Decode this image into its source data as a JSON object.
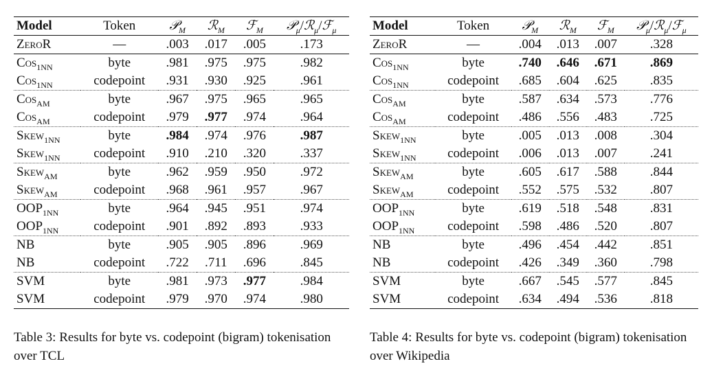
{
  "headers": {
    "model": "Model",
    "token": "Token",
    "p": "𝒫",
    "r": "ℛ",
    "f": "ℱ",
    "sub_m": "M",
    "sub_mu": "μ",
    "slash": "/"
  },
  "tables": [
    {
      "caption": "Table 3: Results for byte vs. codepoint (bigram) tokenisation over TCL",
      "groups": [
        [
          {
            "model": "ZeroR",
            "sub": "",
            "token": "—",
            "p": ".003",
            "r": ".017",
            "f": ".005",
            "mu": ".173",
            "bold": []
          }
        ],
        [
          {
            "model": "Cos",
            "sub": "1NN",
            "token": "byte",
            "p": ".981",
            "r": ".975",
            "f": ".975",
            "mu": ".982",
            "bold": []
          },
          {
            "model": "Cos",
            "sub": "1NN",
            "token": "codepoint",
            "p": ".931",
            "r": ".930",
            "f": ".925",
            "mu": ".961",
            "bold": []
          }
        ],
        [
          {
            "model": "Cos",
            "sub": "AM",
            "token": "byte",
            "p": ".967",
            "r": ".975",
            "f": ".965",
            "mu": ".965",
            "bold": []
          },
          {
            "model": "Cos",
            "sub": "AM",
            "token": "codepoint",
            "p": ".979",
            "r": ".977",
            "f": ".974",
            "mu": ".964",
            "bold": [
              "r"
            ]
          }
        ],
        [
          {
            "model": "Skew",
            "sub": "1NN",
            "token": "byte",
            "p": ".984",
            "r": ".974",
            "f": ".976",
            "mu": ".987",
            "bold": [
              "p",
              "mu"
            ]
          },
          {
            "model": "Skew",
            "sub": "1NN",
            "token": "codepoint",
            "p": ".910",
            "r": ".210",
            "f": ".320",
            "mu": ".337",
            "bold": []
          }
        ],
        [
          {
            "model": "Skew",
            "sub": "AM",
            "token": "byte",
            "p": ".962",
            "r": ".959",
            "f": ".950",
            "mu": ".972",
            "bold": []
          },
          {
            "model": "Skew",
            "sub": "AM",
            "token": "codepoint",
            "p": ".968",
            "r": ".961",
            "f": ".957",
            "mu": ".967",
            "bold": []
          }
        ],
        [
          {
            "model": "OOP",
            "sub": "1NN",
            "token": "byte",
            "p": ".964",
            "r": ".945",
            "f": ".951",
            "mu": ".974",
            "bold": []
          },
          {
            "model": "OOP",
            "sub": "1NN",
            "token": "codepoint",
            "p": ".901",
            "r": ".892",
            "f": ".893",
            "mu": ".933",
            "bold": []
          }
        ],
        [
          {
            "model": "NB",
            "sub": "",
            "token": "byte",
            "p": ".905",
            "r": ".905",
            "f": ".896",
            "mu": ".969",
            "bold": []
          },
          {
            "model": "NB",
            "sub": "",
            "token": "codepoint",
            "p": ".722",
            "r": ".711",
            "f": ".696",
            "mu": ".845",
            "bold": []
          }
        ],
        [
          {
            "model": "SVM",
            "sub": "",
            "token": "byte",
            "p": ".981",
            "r": ".973",
            "f": ".977",
            "mu": ".984",
            "bold": [
              "f"
            ]
          },
          {
            "model": "SVM",
            "sub": "",
            "token": "codepoint",
            "p": ".979",
            "r": ".970",
            "f": ".974",
            "mu": ".980",
            "bold": []
          }
        ]
      ]
    },
    {
      "caption": "Table 4: Results for byte vs. codepoint (bigram) tokenisation over Wikipedia",
      "groups": [
        [
          {
            "model": "ZeroR",
            "sub": "",
            "token": "—",
            "p": ".004",
            "r": ".013",
            "f": ".007",
            "mu": ".328",
            "bold": []
          }
        ],
        [
          {
            "model": "Cos",
            "sub": "1NN",
            "token": "byte",
            "p": ".740",
            "r": ".646",
            "f": ".671",
            "mu": ".869",
            "bold": [
              "p",
              "r",
              "f",
              "mu"
            ]
          },
          {
            "model": "Cos",
            "sub": "1NN",
            "token": "codepoint",
            "p": ".685",
            "r": ".604",
            "f": ".625",
            "mu": ".835",
            "bold": []
          }
        ],
        [
          {
            "model": "Cos",
            "sub": "AM",
            "token": "byte",
            "p": ".587",
            "r": ".634",
            "f": ".573",
            "mu": ".776",
            "bold": []
          },
          {
            "model": "Cos",
            "sub": "AM",
            "token": "codepoint",
            "p": ".486",
            "r": ".556",
            "f": ".483",
            "mu": ".725",
            "bold": []
          }
        ],
        [
          {
            "model": "Skew",
            "sub": "1NN",
            "token": "byte",
            "p": ".005",
            "r": ".013",
            "f": ".008",
            "mu": ".304",
            "bold": []
          },
          {
            "model": "Skew",
            "sub": "1NN",
            "token": "codepoint",
            "p": ".006",
            "r": ".013",
            "f": ".007",
            "mu": ".241",
            "bold": []
          }
        ],
        [
          {
            "model": "Skew",
            "sub": "AM",
            "token": "byte",
            "p": ".605",
            "r": ".617",
            "f": ".588",
            "mu": ".844",
            "bold": []
          },
          {
            "model": "Skew",
            "sub": "AM",
            "token": "codepoint",
            "p": ".552",
            "r": ".575",
            "f": ".532",
            "mu": ".807",
            "bold": []
          }
        ],
        [
          {
            "model": "OOP",
            "sub": "1NN",
            "token": "byte",
            "p": ".619",
            "r": ".518",
            "f": ".548",
            "mu": ".831",
            "bold": []
          },
          {
            "model": "OOP",
            "sub": "1NN",
            "token": "codepoint",
            "p": ".598",
            "r": ".486",
            "f": ".520",
            "mu": ".807",
            "bold": []
          }
        ],
        [
          {
            "model": "NB",
            "sub": "",
            "token": "byte",
            "p": ".496",
            "r": ".454",
            "f": ".442",
            "mu": ".851",
            "bold": []
          },
          {
            "model": "NB",
            "sub": "",
            "token": "codepoint",
            "p": ".426",
            "r": ".349",
            "f": ".360",
            "mu": ".798",
            "bold": []
          }
        ],
        [
          {
            "model": "SVM",
            "sub": "",
            "token": "byte",
            "p": ".667",
            "r": ".545",
            "f": ".577",
            "mu": ".845",
            "bold": []
          },
          {
            "model": "SVM",
            "sub": "",
            "token": "codepoint",
            "p": ".634",
            "r": ".494",
            "f": ".536",
            "mu": ".818",
            "bold": []
          }
        ]
      ]
    }
  ]
}
